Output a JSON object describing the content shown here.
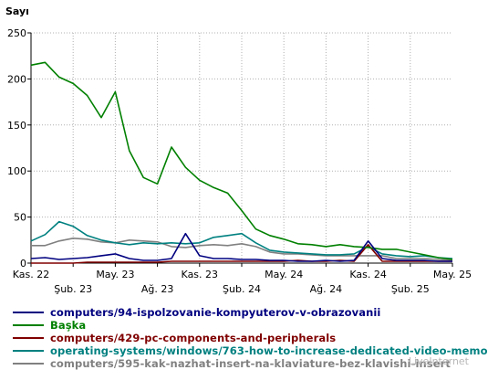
{
  "chart_data": {
    "type": "line",
    "ylabel": "Sayı",
    "ylim": [
      0,
      250
    ],
    "yticks": [
      0,
      50,
      100,
      150,
      200,
      250
    ],
    "grid": true,
    "legend_position": "bottom",
    "x_tick_labels": [
      {
        "label": "Kas. 22",
        "index": 0,
        "row": 1
      },
      {
        "label": "Şub. 23",
        "index": 3,
        "row": 2
      },
      {
        "label": "May. 23",
        "index": 6,
        "row": 1
      },
      {
        "label": "Ağ. 23",
        "index": 9,
        "row": 2
      },
      {
        "label": "Kas. 23",
        "index": 12,
        "row": 1
      },
      {
        "label": "Şub. 24",
        "index": 15,
        "row": 2
      },
      {
        "label": "May. 24",
        "index": 18,
        "row": 1
      },
      {
        "label": "Ağ. 24",
        "index": 21,
        "row": 2
      },
      {
        "label": "Kas. 24",
        "index": 24,
        "row": 1
      },
      {
        "label": "Şub. 25",
        "index": 27,
        "row": 2
      },
      {
        "label": "May. 25",
        "index": 30,
        "row": 1
      }
    ],
    "x_count": 31,
    "series": [
      {
        "name": "computers/94-ispolzovanie-kompyuterov-v-obrazovanii",
        "color": "#000080",
        "values": [
          5,
          6,
          4,
          5,
          6,
          8,
          10,
          5,
          3,
          3,
          5,
          32,
          8,
          5,
          5,
          4,
          4,
          3,
          3,
          2,
          2,
          3,
          2,
          3,
          24,
          5,
          3,
          3,
          3,
          2,
          2
        ]
      },
      {
        "name": "Başka",
        "color": "#008000",
        "values": [
          215,
          218,
          202,
          195,
          182,
          158,
          186,
          122,
          93,
          86,
          126,
          104,
          90,
          82,
          76,
          57,
          37,
          30,
          26,
          21,
          20,
          18,
          20,
          18,
          17,
          15,
          15,
          12,
          9,
          6,
          4
        ]
      },
      {
        "name": "computers/429-pc-components-and-peripherals",
        "color": "#800000",
        "values": [
          0,
          0,
          0,
          0,
          1,
          1,
          1,
          1,
          1,
          1,
          2,
          2,
          2,
          2,
          2,
          2,
          2,
          2,
          2,
          3,
          2,
          2,
          3,
          2,
          20,
          2,
          2,
          2,
          2,
          2,
          2
        ]
      },
      {
        "name": "operating-systems/windows/763-how-to-increase-dedicated-video-memo",
        "color": "#008080",
        "values": [
          24,
          31,
          45,
          40,
          30,
          25,
          22,
          20,
          22,
          21,
          22,
          21,
          22,
          28,
          30,
          32,
          22,
          14,
          12,
          11,
          10,
          9,
          9,
          10,
          18,
          10,
          8,
          7,
          8,
          6,
          5
        ]
      },
      {
        "name": "computers/595-kak-nazhat-insert-na-klaviature-bez-klavishi-insert",
        "color": "#808080",
        "values": [
          19,
          19,
          24,
          27,
          26,
          23,
          22,
          25,
          24,
          23,
          18,
          17,
          19,
          20,
          19,
          21,
          18,
          12,
          10,
          10,
          9,
          8,
          8,
          8,
          8,
          8,
          5,
          5,
          5,
          4,
          3
        ]
      }
    ]
  },
  "watermark": "LiveInternet"
}
